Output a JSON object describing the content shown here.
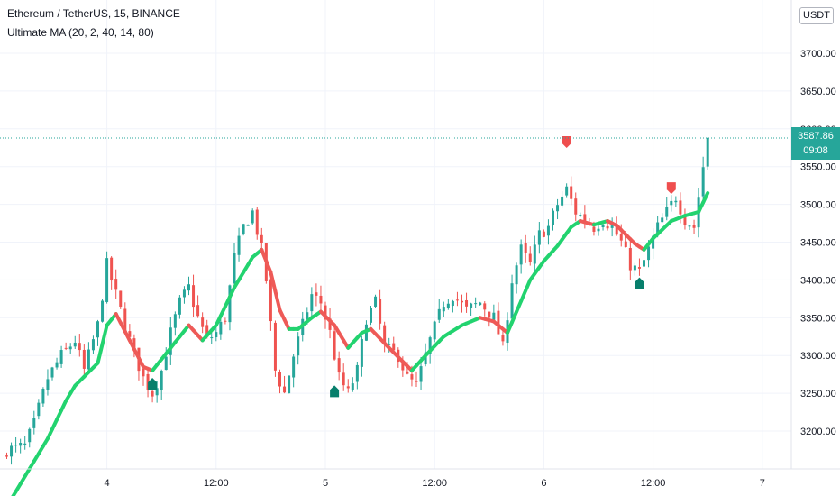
{
  "header": {
    "title": "Ethereum / TetherUS, 15, BINANCE",
    "indicator": "Ultimate MA (20, 2, 40, 14, 80)"
  },
  "currency_label": "USDT",
  "last_price": {
    "value": "3587.86",
    "countdown": "09:08"
  },
  "colors": {
    "candle_up": "#26a69a",
    "candle_down": "#ef5350",
    "ma_up": "#22d36f",
    "ma_down": "#ee5a57",
    "buy_marker": "#087f6c",
    "sell_marker": "#ef4e4e",
    "last_price_line": "#26a69a"
  },
  "chart_data": {
    "type": "candlestick",
    "symbol": "ETHUSDT",
    "timeframe": "15",
    "exchange": "BINANCE",
    "ylim": [
      3150,
      3750
    ],
    "y_ticks": [
      3200,
      3250,
      3300,
      3350,
      3400,
      3450,
      3500,
      3550,
      3600,
      3650,
      3700
    ],
    "y_tick_labels": [
      "3200.00",
      "3250.00",
      "3300.00",
      "3350.00",
      "3400.00",
      "3450.00",
      "3500.00",
      "3550.00",
      "3600.00",
      "3650.00",
      "3700.00"
    ],
    "x_ticks": [
      {
        "label": "4",
        "t": 22
      },
      {
        "label": "12:00",
        "t": 46
      },
      {
        "label": "5",
        "t": 70
      },
      {
        "label": "12:00",
        "t": 94
      },
      {
        "label": "6",
        "t": 118
      },
      {
        "label": "12:00",
        "t": 142
      },
      {
        "label": "7",
        "t": 166
      }
    ],
    "last_price": 3587.86,
    "ma_keypoints": [
      [
        0,
        3100
      ],
      [
        9,
        3190
      ],
      [
        13,
        3240
      ],
      [
        15,
        3260
      ],
      [
        20,
        3290
      ],
      [
        22,
        3340
      ],
      [
        24,
        3355
      ],
      [
        30,
        3285
      ],
      [
        32,
        3280
      ],
      [
        38,
        3325
      ],
      [
        40,
        3340
      ],
      [
        43,
        3320
      ],
      [
        46,
        3340
      ],
      [
        50,
        3390
      ],
      [
        54,
        3430
      ],
      [
        56,
        3440
      ],
      [
        58,
        3410
      ],
      [
        60,
        3360
      ],
      [
        62,
        3335
      ],
      [
        64,
        3335
      ],
      [
        67,
        3350
      ],
      [
        69,
        3358
      ],
      [
        72,
        3340
      ],
      [
        75,
        3310
      ],
      [
        78,
        3330
      ],
      [
        80,
        3335
      ],
      [
        84,
        3310
      ],
      [
        89,
        3280
      ],
      [
        92,
        3300
      ],
      [
        96,
        3325
      ],
      [
        100,
        3340
      ],
      [
        104,
        3350
      ],
      [
        107,
        3345
      ],
      [
        110,
        3330
      ],
      [
        115,
        3400
      ],
      [
        118,
        3425
      ],
      [
        121,
        3445
      ],
      [
        124,
        3470
      ],
      [
        126,
        3478
      ],
      [
        129,
        3473
      ],
      [
        132,
        3478
      ],
      [
        134,
        3472
      ],
      [
        136,
        3460
      ],
      [
        138,
        3448
      ],
      [
        140,
        3440
      ],
      [
        142,
        3455
      ],
      [
        146,
        3478
      ],
      [
        149,
        3485
      ],
      [
        152,
        3490
      ],
      [
        154,
        3515
      ]
    ],
    "close_keypoints": [
      [
        0,
        3175
      ],
      [
        4,
        3180
      ],
      [
        6,
        3210
      ],
      [
        9,
        3270
      ],
      [
        12,
        3300
      ],
      [
        15,
        3320
      ],
      [
        17,
        3280
      ],
      [
        20,
        3340
      ],
      [
        22,
        3420
      ],
      [
        24,
        3380
      ],
      [
        27,
        3320
      ],
      [
        30,
        3270
      ],
      [
        32,
        3250
      ],
      [
        34,
        3280
      ],
      [
        36,
        3330
      ],
      [
        38,
        3370
      ],
      [
        40,
        3390
      ],
      [
        42,
        3350
      ],
      [
        44,
        3320
      ],
      [
        46,
        3330
      ],
      [
        48,
        3350
      ],
      [
        50,
        3430
      ],
      [
        52,
        3470
      ],
      [
        54,
        3490
      ],
      [
        56,
        3440
      ],
      [
        57,
        3400
      ],
      [
        59,
        3280
      ],
      [
        61,
        3250
      ],
      [
        63,
        3300
      ],
      [
        65,
        3340
      ],
      [
        67,
        3380
      ],
      [
        69,
        3370
      ],
      [
        71,
        3330
      ],
      [
        73,
        3270
      ],
      [
        75,
        3250
      ],
      [
        77,
        3280
      ],
      [
        79,
        3350
      ],
      [
        81,
        3370
      ],
      [
        83,
        3310
      ],
      [
        86,
        3300
      ],
      [
        88,
        3270
      ],
      [
        90,
        3260
      ],
      [
        93,
        3320
      ],
      [
        96,
        3370
      ],
      [
        98,
        3380
      ],
      [
        101,
        3360
      ],
      [
        104,
        3370
      ],
      [
        107,
        3350
      ],
      [
        109,
        3310
      ],
      [
        111,
        3400
      ],
      [
        113,
        3440
      ],
      [
        115,
        3420
      ],
      [
        117,
        3460
      ],
      [
        119,
        3470
      ],
      [
        121,
        3500
      ],
      [
        123,
        3520
      ],
      [
        125,
        3490
      ],
      [
        127,
        3480
      ],
      [
        129,
        3470
      ],
      [
        131,
        3480
      ],
      [
        133,
        3470
      ],
      [
        135,
        3450
      ],
      [
        137,
        3420
      ],
      [
        139,
        3410
      ],
      [
        141,
        3440
      ],
      [
        143,
        3470
      ],
      [
        145,
        3490
      ],
      [
        147,
        3510
      ],
      [
        149,
        3480
      ],
      [
        151,
        3470
      ],
      [
        153,
        3550
      ],
      [
        154,
        3587.86
      ]
    ],
    "n_candles": 155,
    "buy_signals": [
      {
        "t": 32,
        "price": 3262
      },
      {
        "t": 72,
        "price": 3252
      },
      {
        "t": 139,
        "price": 3395
      }
    ],
    "sell_signals": [
      {
        "t": 123,
        "price": 3583
      },
      {
        "t": 146,
        "price": 3522
      }
    ]
  }
}
